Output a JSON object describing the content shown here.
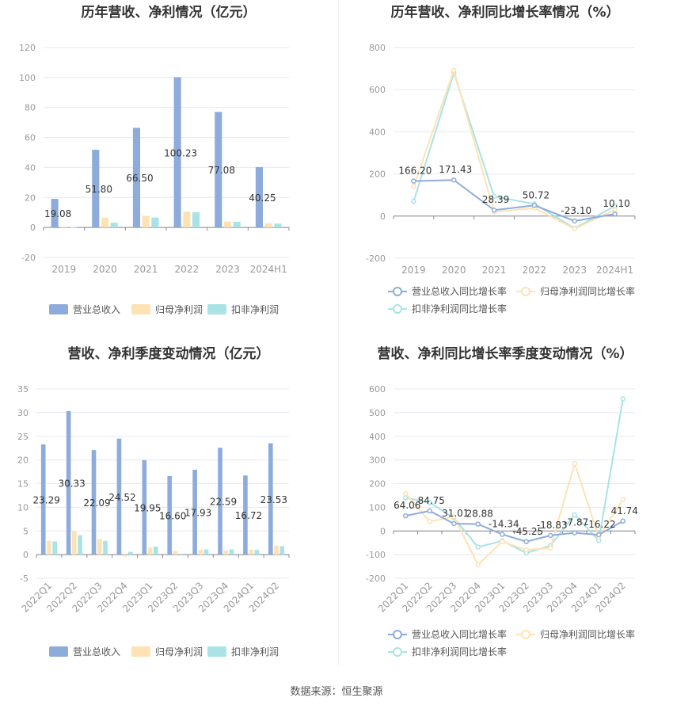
{
  "source": "数据来源：恒生聚源",
  "chart_data": [
    {
      "id": "annual-rev",
      "type": "bar",
      "title": "历年营收、净利情况（亿元）",
      "categories": [
        "2019",
        "2020",
        "2021",
        "2022",
        "2023",
        "2024H1"
      ],
      "ylim": [
        -20,
        120
      ],
      "yticks": [
        -20,
        0,
        20,
        40,
        60,
        80,
        100,
        120
      ],
      "grid": true,
      "legend_position": "bottom",
      "series": [
        {
          "name": "营业总收入",
          "color": "#8eacdb",
          "values": [
            19.08,
            51.8,
            66.5,
            100.23,
            77.08,
            40.25
          ],
          "labels": [
            "19.08",
            "51.80",
            "66.50",
            "100.23",
            "77.08",
            "40.25"
          ]
        },
        {
          "name": "归母净利润",
          "color": "#fde3b4",
          "values": [
            0.5,
            6.5,
            7.8,
            10.6,
            4.0,
            2.8
          ]
        },
        {
          "name": "扣非净利润",
          "color": "#a9e3e6",
          "values": [
            0.3,
            3.2,
            6.6,
            10.2,
            3.8,
            2.6
          ]
        }
      ]
    },
    {
      "id": "annual-growth",
      "type": "line",
      "title": "历年营收、净利同比增长率情况（%）",
      "categories": [
        "2019",
        "2020",
        "2021",
        "2022",
        "2023",
        "2024H1"
      ],
      "ylim": [
        -200,
        800
      ],
      "yticks": [
        -200,
        0,
        200,
        400,
        600,
        800
      ],
      "grid": true,
      "legend_position": "bottom",
      "series": [
        {
          "name": "营业总收入同比增长率",
          "color": "#8eacdb",
          "values": [
            166.2,
            171.43,
            28.39,
            50.72,
            -23.1,
            10.1
          ],
          "labels": [
            "166.20",
            "171.43",
            "28.39",
            "50.72",
            "-23.10",
            "10.10"
          ]
        },
        {
          "name": "归母净利润同比增长率",
          "color": "#fde3b4",
          "values": [
            140,
            692,
            20,
            38,
            -60,
            30
          ]
        },
        {
          "name": "扣非净利润同比增长率",
          "color": "#a9e3e6",
          "values": [
            70,
            680,
            93,
            58,
            -58,
            48
          ]
        }
      ]
    },
    {
      "id": "quarter-rev",
      "type": "bar",
      "title": "营收、净利季度变动情况（亿元）",
      "categories": [
        "2022Q1",
        "2022Q2",
        "2022Q3",
        "2022Q4",
        "2023Q1",
        "2023Q2",
        "2023Q3",
        "2023Q4",
        "2024Q1",
        "2024Q2"
      ],
      "ylim": [
        -5,
        35
      ],
      "yticks": [
        -5,
        0,
        5,
        10,
        15,
        20,
        25,
        30,
        35
      ],
      "grid": true,
      "legend_position": "bottom",
      "series": [
        {
          "name": "营业总收入",
          "color": "#8eacdb",
          "values": [
            23.29,
            30.33,
            22.09,
            24.52,
            19.95,
            16.6,
            17.93,
            22.59,
            16.72,
            23.53
          ],
          "labels": [
            "23.29",
            "30.33",
            "22.09",
            "24.52",
            "19.95",
            "16.60",
            "17.93",
            "22.59",
            "16.72",
            "23.53"
          ]
        },
        {
          "name": "归母净利润",
          "color": "#fde3b4",
          "values": [
            2.9,
            5.0,
            3.3,
            -0.4,
            1.5,
            0.8,
            1.0,
            0.9,
            1.0,
            1.9
          ]
        },
        {
          "name": "扣非净利润",
          "color": "#a9e3e6",
          "values": [
            2.8,
            4.1,
            2.9,
            0.6,
            1.7,
            0.2,
            1.1,
            1.1,
            1.0,
            1.8
          ]
        }
      ]
    },
    {
      "id": "quarter-growth",
      "type": "line",
      "title": "营收、净利同比增长率季度变动情况（%）",
      "categories": [
        "2022Q1",
        "2022Q2",
        "2022Q3",
        "2022Q4",
        "2023Q1",
        "2023Q2",
        "2023Q3",
        "2023Q4",
        "2024Q1",
        "2024Q2"
      ],
      "ylim": [
        -200,
        600
      ],
      "yticks": [
        -200,
        -100,
        0,
        100,
        200,
        300,
        400,
        500,
        600
      ],
      "grid": true,
      "legend_position": "bottom",
      "series": [
        {
          "name": "营业总收入同比增长率",
          "color": "#8eacdb",
          "values": [
            64.06,
            84.75,
            31.01,
            28.88,
            -14.34,
            -45.25,
            -18.83,
            -7.87,
            -16.22,
            41.74
          ],
          "labels": [
            "64.06",
            "84.75",
            "31.01",
            "28.88",
            "-14.34",
            "-45.25",
            "-18.83",
            "-7.87",
            "-16.22",
            "41.74"
          ]
        },
        {
          "name": "归母净利润同比增长率",
          "color": "#fde3b4",
          "values": [
            158,
            40,
            60,
            -142,
            -45,
            -80,
            -72,
            285,
            -25,
            133
          ]
        },
        {
          "name": "扣非净利润同比增长率",
          "color": "#a9e3e6",
          "values": [
            140,
            120,
            55,
            -68,
            -42,
            -93,
            -62,
            68,
            -40,
            558
          ]
        }
      ]
    }
  ]
}
